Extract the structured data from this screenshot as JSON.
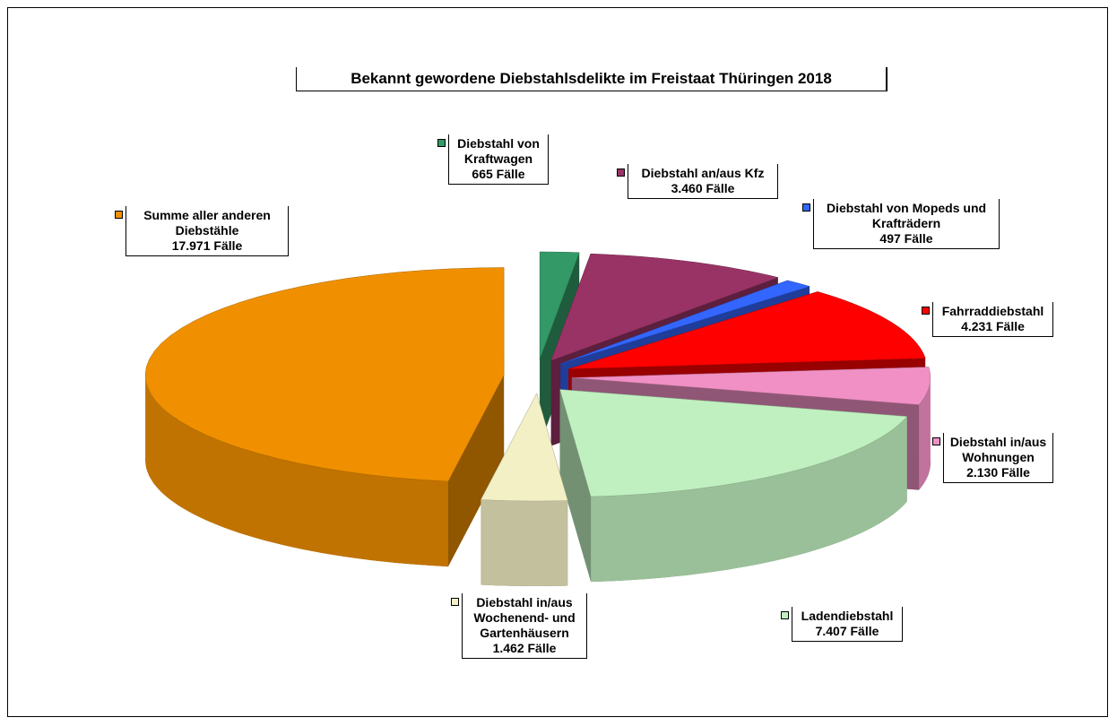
{
  "chart_data": {
    "type": "pie",
    "title": "Bekannt gewordene Diebstahlsdelikte im Freistaat Thüringen 2018",
    "categories": [
      "Diebstahl von Kraftwagen",
      "Diebstahl an/aus Kfz",
      "Diebstahl von Mopeds und Krafträdern",
      "Fahrraddiebstahl",
      "Diebstahl in/aus Wohnungen",
      "Ladendiebstahl",
      "Diebstahl in/aus Wochenend- und Gartenhäusern",
      "Summe aller anderen Diebstähle"
    ],
    "values": [
      665,
      3460,
      497,
      4231,
      2130,
      7407,
      1462,
      17971
    ],
    "value_labels": [
      "665 Fälle",
      "3.460 Fälle",
      "497 Fälle",
      "4.231 Fälle",
      "2.130 Fälle",
      "7.407 Fälle",
      "1.462 Fälle",
      "17.971 Fälle"
    ],
    "colors": [
      "#339966",
      "#993366",
      "#3366ff",
      "#ff0000",
      "#f090c4",
      "#c0f0c0",
      "#f2f0c4",
      "#f09000"
    ]
  }
}
